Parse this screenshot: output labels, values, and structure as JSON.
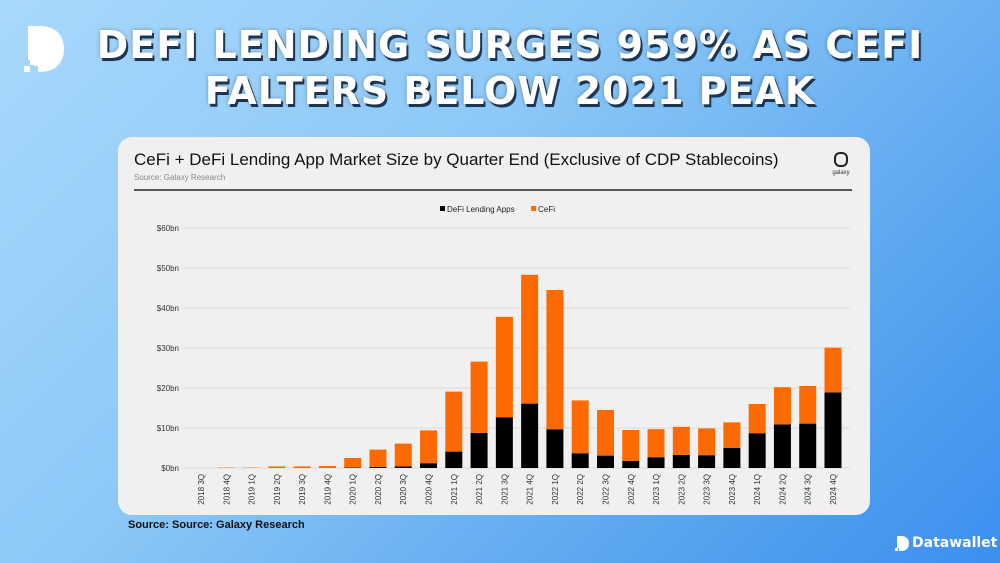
{
  "headline": "DEFI LENDING SURGES 959% AS CEFI FALTERS BELOW 2021 PEAK",
  "brand": {
    "name": "Datawallet",
    "logo_icon": "datawallet-d-logo"
  },
  "footer_source": "Source: Source: Galaxy Research",
  "colors": {
    "defi": "#000000",
    "cefi": "#ff6a00",
    "card_bg": "#f0f0f0"
  },
  "chart_data": {
    "type": "bar",
    "stacked": true,
    "title": "CeFi + DeFi Lending App Market Size by Quarter End (Exclusive of CDP Stablecoins)",
    "subtitle": "Source: Galaxy Research",
    "logo_text": "galaxy",
    "legend_position": "top-center",
    "grid": true,
    "ylim": [
      0,
      60
    ],
    "yticks": [
      "$0bn",
      "$10bn",
      "$20bn",
      "$30bn",
      "$40bn",
      "$50bn",
      "$60bn"
    ],
    "categories": [
      "2018 3Q",
      "2018 4Q",
      "2019 1Q",
      "2019 2Q",
      "2019 3Q",
      "2019 4Q",
      "2020 1Q",
      "2020 2Q",
      "2020 3Q",
      "2020 4Q",
      "2021 1Q",
      "2021 2Q",
      "2021 3Q",
      "2021 4Q",
      "2022 1Q",
      "2022 2Q",
      "2022 3Q",
      "2022 4Q",
      "2023 1Q",
      "2023 2Q",
      "2023 3Q",
      "2023 4Q",
      "2024 1Q",
      "2024 2Q",
      "2024 3Q",
      "2024 4Q"
    ],
    "series": [
      {
        "name": "DeFi Lending Apps",
        "color": "#000000",
        "values": [
          0,
          0,
          0,
          0,
          0,
          0,
          0.1,
          0.3,
          0.4,
          1.2,
          4.1,
          8.8,
          12.7,
          16.1,
          9.7,
          3.7,
          3.1,
          1.8,
          2.7,
          3.3,
          3.2,
          5.0,
          8.7,
          10.9,
          11.1,
          18.9
        ]
      },
      {
        "name": "CeFi",
        "color": "#ff6a00",
        "values": [
          0,
          0.1,
          0.1,
          0.4,
          0.4,
          0.5,
          2.4,
          4.3,
          5.7,
          8.2,
          15.0,
          17.8,
          25.1,
          32.2,
          34.8,
          13.2,
          11.4,
          7.7,
          7.0,
          7.0,
          6.7,
          6.4,
          7.3,
          9.3,
          9.4,
          11.2
        ]
      }
    ]
  }
}
